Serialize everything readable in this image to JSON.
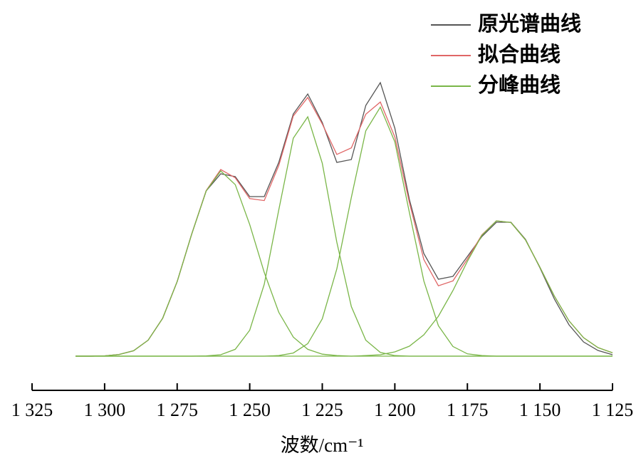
{
  "chart_data": {
    "type": "line",
    "xlabel": "波数/cm⁻¹",
    "xlim": [
      1325,
      1125
    ],
    "xticks": [
      {
        "value": 1325,
        "label": "1 325"
      },
      {
        "value": 1300,
        "label": "1 300"
      },
      {
        "value": 1275,
        "label": "1 275"
      },
      {
        "value": 1250,
        "label": "1 250"
      },
      {
        "value": 1225,
        "label": "1 225"
      },
      {
        "value": 1200,
        "label": "1 200"
      },
      {
        "value": 1175,
        "label": "1 175"
      },
      {
        "value": 1150,
        "label": "1 150"
      },
      {
        "value": 1125,
        "label": "1 125"
      }
    ],
    "ylim": [
      0,
      1
    ],
    "legend": "upper right",
    "x": [
      1310,
      1305,
      1300,
      1295,
      1290,
      1285,
      1280,
      1275,
      1270,
      1265,
      1260,
      1255,
      1250,
      1245,
      1240,
      1235,
      1230,
      1225,
      1220,
      1215,
      1210,
      1205,
      1200,
      1195,
      1190,
      1185,
      1180,
      1175,
      1170,
      1165,
      1160,
      1155,
      1150,
      1145,
      1140,
      1135,
      1130,
      1125
    ],
    "series": [
      {
        "name": "原光谱曲线",
        "color": "#555555",
        "values": [
          0,
          0,
          0.001,
          0.006,
          0.019,
          0.056,
          0.133,
          0.262,
          0.428,
          0.58,
          0.64,
          0.63,
          0.56,
          0.56,
          0.68,
          0.85,
          0.92,
          0.82,
          0.68,
          0.69,
          0.88,
          0.96,
          0.8,
          0.55,
          0.36,
          0.27,
          0.28,
          0.35,
          0.42,
          0.47,
          0.47,
          0.41,
          0.31,
          0.2,
          0.11,
          0.05,
          0.02,
          0.005
        ]
      },
      {
        "name": "拟合曲线",
        "color": "#e06666",
        "values": [
          0,
          0,
          0.001,
          0.006,
          0.019,
          0.056,
          0.133,
          0.262,
          0.428,
          0.581,
          0.655,
          0.626,
          0.553,
          0.546,
          0.669,
          0.843,
          0.908,
          0.815,
          0.708,
          0.731,
          0.849,
          0.892,
          0.769,
          0.539,
          0.339,
          0.247,
          0.264,
          0.341,
          0.426,
          0.475,
          0.469,
          0.408,
          0.312,
          0.21,
          0.124,
          0.065,
          0.03,
          0.012
        ]
      },
      {
        "name": "分峰曲线",
        "color": "#7ab648",
        "values": [
          0,
          0,
          0.001,
          0.006,
          0.019,
          0.056,
          0.133,
          0.262,
          0.428,
          0.58,
          0.65,
          0.602,
          0.462,
          0.294,
          0.154,
          0.067,
          0.024,
          0.007,
          0.002,
          0,
          0,
          0,
          0,
          0,
          0,
          0,
          0,
          0,
          0,
          0,
          0,
          0,
          0,
          0,
          0,
          0,
          0,
          0
        ]
      },
      {
        "name": "分峰曲线",
        "color": "#7ab648",
        "values": [
          0,
          0,
          0,
          0,
          0,
          0,
          0,
          0,
          0,
          0.001,
          0.005,
          0.024,
          0.091,
          0.252,
          0.513,
          0.765,
          0.84,
          0.677,
          0.4,
          0.174,
          0.056,
          0.013,
          0.002,
          0,
          0,
          0,
          0,
          0,
          0,
          0,
          0,
          0,
          0,
          0,
          0,
          0,
          0,
          0
        ]
      },
      {
        "name": "分峰曲线",
        "color": "#7ab648",
        "values": [
          0,
          0,
          0,
          0,
          0,
          0,
          0,
          0,
          0,
          0,
          0,
          0,
          0,
          0,
          0.002,
          0.011,
          0.044,
          0.131,
          0.306,
          0.557,
          0.791,
          0.874,
          0.752,
          0.504,
          0.264,
          0.107,
          0.034,
          0.008,
          0.002,
          0,
          0,
          0,
          0,
          0,
          0,
          0,
          0,
          0
        ]
      },
      {
        "name": "分峰曲线",
        "color": "#7ab648",
        "values": [
          0,
          0,
          0,
          0,
          0,
          0,
          0,
          0,
          0,
          0,
          0,
          0,
          0,
          0,
          0,
          0,
          0,
          0,
          0,
          0,
          0.002,
          0.005,
          0.015,
          0.035,
          0.075,
          0.14,
          0.23,
          0.333,
          0.424,
          0.475,
          0.469,
          0.408,
          0.312,
          0.21,
          0.124,
          0.065,
          0.03,
          0.012
        ]
      }
    ]
  }
}
